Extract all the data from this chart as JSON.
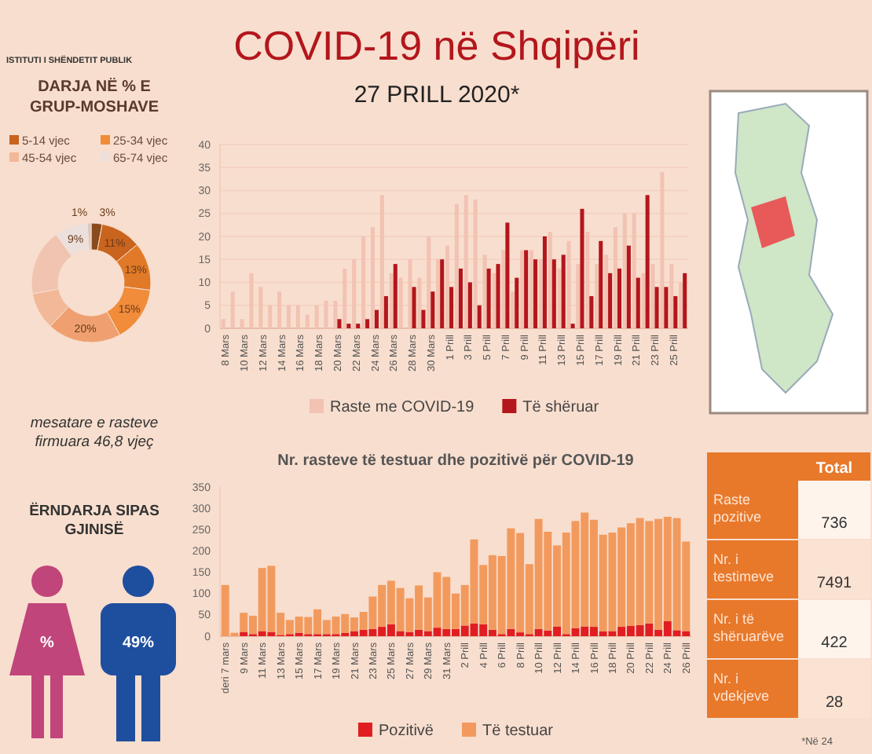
{
  "chart_data": [
    {
      "type": "bar",
      "title": "COVID-19 në Shqipëri",
      "subtitle": "27 PRILL 2020*",
      "annotations": [
        "ISTITUTI I SHËNDETIT PUBLIK"
      ],
      "categories": [
        "8 Mars",
        null,
        "10 Mars",
        null,
        "12 Mars",
        null,
        "14 Mars",
        null,
        "16 Mars",
        null,
        "18 Mars",
        null,
        "20 Mars",
        null,
        "22 Mars",
        null,
        "24 Mars",
        null,
        "26 Mars",
        null,
        "28 Mars",
        null,
        "30 Mars",
        null,
        "1 Prill",
        null,
        "3 Prill",
        null,
        "5 Prill",
        null,
        "7 Prill",
        null,
        "9 Prill",
        null,
        "11 Prill",
        null,
        "13 Prill",
        null,
        "15 Prill",
        null,
        "17 Prill",
        null,
        "19 Prill",
        null,
        "21 Prill",
        null,
        "23 Prill",
        null,
        "25 Prill",
        null
      ],
      "series": [
        {
          "name": "Raste me COVID-19",
          "color": "#f2c2b2",
          "values": [
            2,
            8,
            2,
            12,
            9,
            5,
            8,
            5,
            5,
            3,
            5,
            6,
            6,
            13,
            15,
            20,
            22,
            29,
            12,
            11,
            15,
            11,
            20,
            15,
            18,
            27,
            29,
            28,
            16,
            12,
            17,
            8,
            17,
            17,
            15,
            21,
            13,
            19,
            14,
            21,
            14,
            16,
            22,
            25,
            25,
            12,
            14,
            34,
            14,
            10
          ]
        },
        {
          "name": "Të shëruar",
          "color": "#b3161c",
          "values": [
            0,
            0,
            0,
            0,
            0,
            0,
            0,
            0,
            0,
            0,
            0,
            0,
            2,
            1,
            1,
            2,
            4,
            7,
            14,
            0,
            9,
            4,
            8,
            15,
            9,
            13,
            10,
            5,
            13,
            14,
            23,
            11,
            17,
            15,
            20,
            15,
            16,
            1,
            26,
            7,
            19,
            12,
            13,
            18,
            11,
            29,
            9,
            9,
            7,
            12
          ]
        }
      ],
      "ylim": [
        0,
        40
      ],
      "yticks": [
        0,
        5,
        10,
        15,
        20,
        25,
        30,
        35,
        40
      ],
      "grid": "y",
      "legend": "bottom"
    },
    {
      "type": "donut",
      "title": "DARJA NË % E GRUP-MOSHAVE",
      "annotations": [
        "mesatare e rasteve firmuara 46,8 vjeç"
      ],
      "categories": [
        null,
        "5-14 vjec",
        null,
        "25-34 vjec",
        null,
        "45-54 vjec",
        null,
        "65-74 vjec",
        null
      ],
      "values": [
        3,
        11,
        13,
        15,
        20,
        10,
        18,
        9,
        1
      ],
      "colors": [
        "#8a4a1c",
        "#c8641e",
        "#e07a28",
        "#f08c3a",
        "#f0a070",
        "#f2b898",
        "#f0c4b0",
        "#ece0dc",
        "#d9c8c0"
      ],
      "value_labels": [
        "3%",
        "11%",
        "13%",
        "15%",
        "20%",
        null,
        null,
        "9%",
        "1%"
      ],
      "legend": "top"
    },
    {
      "type": "bar",
      "title": "Nr. rasteve të testuar dhe pozitivë për COVID-19",
      "stacked": true,
      "categories": [
        "deri 7 mars",
        null,
        "9 Mars",
        null,
        "11 Mars",
        null,
        "13 Mars",
        null,
        "15 Mars",
        null,
        "17 Mars",
        null,
        "19 Mars",
        null,
        "21 Mars",
        null,
        "23 Mars",
        null,
        "25 Mars",
        null,
        "27 Mars",
        null,
        "29 Mars",
        null,
        "31 Mars",
        null,
        "2 Prill",
        null,
        "4 Prill",
        null,
        "6 Prill",
        null,
        "8 Prill",
        null,
        "10 Prill",
        null,
        "12 Prill",
        null,
        "14 Prill",
        null,
        "16 Prill",
        null,
        "18 Prill",
        null,
        "20 Prill",
        null,
        "22 Prill",
        null,
        "24 Prill",
        null,
        "26 Prill"
      ],
      "series": [
        {
          "name": "Pozitivë",
          "color": "#e01e22",
          "values": [
            0,
            0,
            10,
            5,
            12,
            10,
            3,
            5,
            8,
            5,
            5,
            5,
            5,
            8,
            12,
            15,
            17,
            22,
            28,
            12,
            10,
            15,
            12,
            20,
            17,
            17,
            25,
            30,
            28,
            15,
            5,
            17,
            9,
            5,
            17,
            13,
            23,
            5,
            19,
            23,
            22,
            11,
            12,
            22,
            24,
            26,
            30,
            15,
            35,
            14,
            12
          ]
        },
        {
          "name": "Të testuar",
          "color": "#f29a5e",
          "values": [
            120,
            8,
            45,
            43,
            148,
            155,
            52,
            33,
            38,
            40,
            58,
            33,
            41,
            44,
            32,
            42,
            76,
            98,
            102,
            101,
            79,
            104,
            79,
            130,
            122,
            83,
            95,
            197,
            139,
            175,
            183,
            236,
            233,
            164,
            258,
            232,
            190,
            238,
            251,
            267,
            251,
            227,
            231,
            233,
            241,
            251,
            240,
            260,
            245,
            263,
            210
          ]
        }
      ],
      "ylim": [
        0,
        350
      ],
      "yticks": [
        0,
        50,
        100,
        150,
        200,
        250,
        300,
        350
      ],
      "legend": "bottom"
    },
    {
      "type": "other",
      "title": "ËRNDARJA SIPAS GJINISË",
      "annotations": [
        "%",
        "49%"
      ]
    },
    {
      "type": "other",
      "annotations": [
        "Total",
        "*Në 24"
      ],
      "categories": [
        "Raste pozitive",
        "Nr. i testimeve",
        "Nr. i të shëruarëve",
        "Nr. i vdekjeve"
      ],
      "values": [
        736,
        7491,
        422,
        28
      ],
      "data_labels": true
    }
  ]
}
